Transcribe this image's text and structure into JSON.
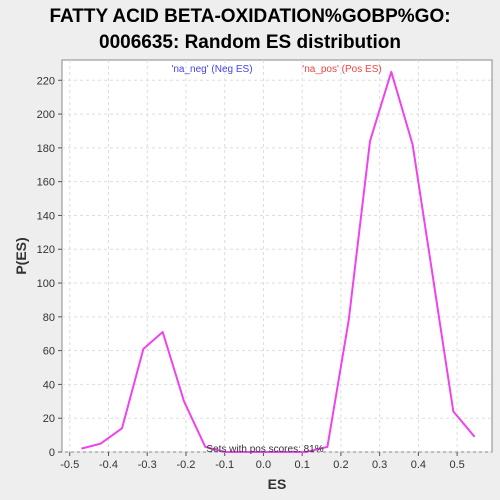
{
  "chart_data": {
    "type": "line",
    "title_lines": [
      "FATTY ACID BETA-OXIDATION%GOBP%GO:",
      "0006635: Random ES distribution"
    ],
    "xlabel": "ES",
    "ylabel": "P(ES)",
    "xlim": [
      -0.52,
      0.59
    ],
    "ylim": [
      0,
      232
    ],
    "x_ticks": [
      -0.5,
      -0.4,
      -0.3,
      -0.2,
      -0.1,
      0.0,
      0.1,
      0.2,
      0.3,
      0.4,
      0.5
    ],
    "x_tick_labels": [
      "-0.5",
      "-0.4",
      "-0.3",
      "-0.2",
      "-0.1",
      "0.0",
      "0.1",
      "0.2",
      "0.3",
      "0.4",
      "0.5"
    ],
    "y_ticks": [
      0,
      20,
      40,
      60,
      80,
      100,
      120,
      140,
      160,
      180,
      200,
      220
    ],
    "y_tick_labels": [
      "0",
      "20",
      "40",
      "60",
      "80",
      "100",
      "120",
      "140",
      "160",
      "180",
      "200",
      "220"
    ],
    "grid": true,
    "series": [
      {
        "name": "P(ES)",
        "color": "#ee44ee",
        "x": [
          -0.47,
          -0.42,
          -0.365,
          -0.31,
          -0.26,
          -0.205,
          -0.15,
          -0.1,
          -0.05,
          0.0,
          0.05,
          0.11,
          0.165,
          0.22,
          0.275,
          0.33,
          0.385,
          0.435,
          0.49,
          0.545
        ],
        "y": [
          2,
          5,
          14,
          61,
          71,
          30,
          3,
          0,
          0,
          0,
          0,
          0,
          3,
          78,
          184,
          225,
          182,
          107,
          24,
          9
        ]
      }
    ],
    "legend": [
      {
        "label": "'na_neg' (Neg ES)",
        "color": "#4444ee"
      },
      {
        "label": "'na_pos' (Pos ES)",
        "color": "#ee4444"
      }
    ],
    "annotation": "Sets with pos scores: 81%"
  }
}
